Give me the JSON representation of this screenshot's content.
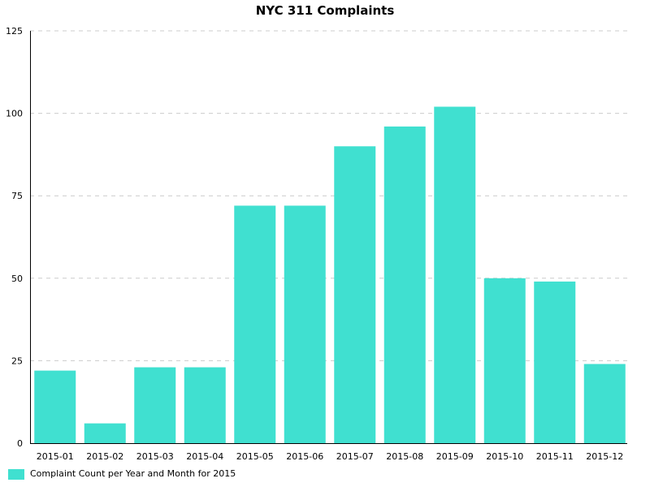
{
  "chart_data": {
    "type": "bar",
    "title": "NYC 311 Complaints",
    "xlabel": "",
    "ylabel": "",
    "categories": [
      "2015-01",
      "2015-02",
      "2015-03",
      "2015-04",
      "2015-05",
      "2015-06",
      "2015-07",
      "2015-08",
      "2015-09",
      "2015-10",
      "2015-11",
      "2015-12"
    ],
    "series": [
      {
        "name": "Complaint Count per Year and Month for 2015",
        "values": [
          22,
          6,
          23,
          23,
          72,
          72,
          90,
          96,
          102,
          50,
          49,
          24
        ],
        "color": "#40e0d0"
      }
    ],
    "ylim": [
      0,
      125
    ],
    "yticks": [
      0,
      25,
      50,
      75,
      100,
      125
    ],
    "grid": true,
    "legend_position": "bottom-left"
  }
}
